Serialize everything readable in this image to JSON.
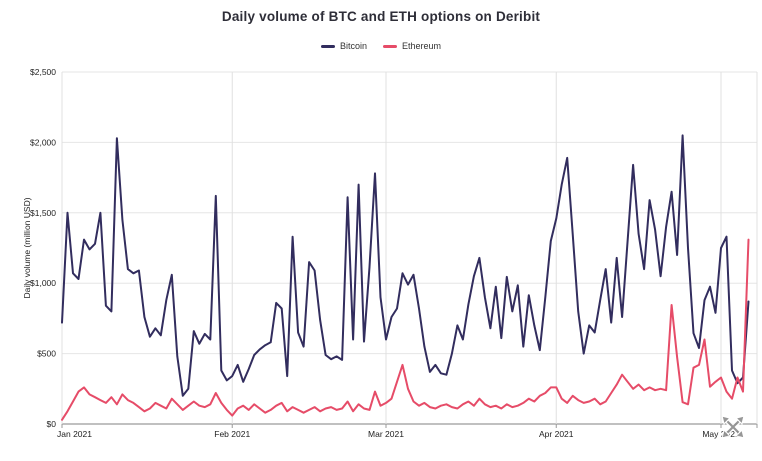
{
  "header": {
    "title": "Daily volume of BTC and ETH options on Deribit"
  },
  "legend": {
    "items": [
      {
        "label": "Bitcoin",
        "color": "#322d5e"
      },
      {
        "label": "Ethereum",
        "color": "#e64c68"
      }
    ]
  },
  "icons": {
    "move_handle": "move-icon",
    "color": "#8f8f8f"
  },
  "colors": {
    "grid": "#e6e6e6",
    "border": "#e0e0e0",
    "axis_line": "#808080",
    "tick": "#999999",
    "tick_label": "#222222",
    "title": "#2e2e38"
  },
  "chart_data": {
    "type": "line",
    "title": "Daily volume of BTC and ETH options on Deribit",
    "xlabel": "",
    "ylabel": "Daily volume (million USD)",
    "ylim": [
      0,
      2500
    ],
    "x_range_days": [
      "Jan 1 2021",
      "May 6 2021"
    ],
    "grid": true,
    "legend_position": "top",
    "y_ticks": [
      {
        "value": 0,
        "label": "$0"
      },
      {
        "value": 500,
        "label": "$500"
      },
      {
        "value": 1000,
        "label": "$1,000"
      },
      {
        "value": 1500,
        "label": "$1,500"
      },
      {
        "value": 2000,
        "label": "$2,000"
      },
      {
        "value": 2500,
        "label": "$2,500"
      }
    ],
    "x_ticks": [
      {
        "day": 1,
        "label": "Jan 2021"
      },
      {
        "day": 32,
        "label": "Feb 2021"
      },
      {
        "day": 60,
        "label": "Mar 2021"
      },
      {
        "day": 91,
        "label": "Apr 2021"
      },
      {
        "day": 121,
        "label": "May 2021"
      }
    ],
    "series": [
      {
        "name": "Bitcoin",
        "color": "#322d5e",
        "values": [
          720,
          1500,
          1070,
          1030,
          1310,
          1240,
          1280,
          1500,
          840,
          800,
          2030,
          1450,
          1100,
          1070,
          1090,
          760,
          620,
          680,
          630,
          880,
          1060,
          480,
          200,
          250,
          660,
          570,
          640,
          600,
          1620,
          380,
          310,
          340,
          420,
          300,
          390,
          490,
          530,
          560,
          580,
          860,
          820,
          340,
          1330,
          650,
          550,
          1150,
          1090,
          740,
          490,
          460,
          480,
          455,
          1610,
          600,
          1700,
          585,
          1115,
          1780,
          900,
          600,
          760,
          820,
          1070,
          990,
          1060,
          820,
          550,
          370,
          420,
          360,
          350,
          500,
          700,
          600,
          850,
          1050,
          1180,
          900,
          680,
          975,
          610,
          1045,
          800,
          985,
          550,
          915,
          700,
          525,
          900,
          1300,
          1460,
          1700,
          1890,
          1350,
          800,
          500,
          700,
          650,
          880,
          1100,
          720,
          1180,
          760,
          1300,
          1840,
          1350,
          1100,
          1590,
          1380,
          1050,
          1400,
          1650,
          1200,
          2050,
          1250,
          645,
          540,
          880,
          975,
          790,
          1250,
          1330,
          380,
          290,
          330,
          870
        ]
      },
      {
        "name": "Ethereum",
        "color": "#e64c68",
        "values": [
          30,
          90,
          160,
          230,
          260,
          210,
          190,
          170,
          150,
          190,
          140,
          210,
          170,
          150,
          120,
          90,
          110,
          150,
          130,
          110,
          180,
          140,
          100,
          130,
          160,
          130,
          120,
          140,
          220,
          150,
          100,
          60,
          110,
          130,
          100,
          140,
          110,
          80,
          100,
          130,
          150,
          90,
          120,
          100,
          80,
          100,
          120,
          90,
          110,
          120,
          100,
          110,
          160,
          90,
          140,
          110,
          100,
          230,
          130,
          150,
          180,
          300,
          420,
          250,
          160,
          130,
          150,
          120,
          110,
          130,
          140,
          120,
          110,
          140,
          160,
          130,
          180,
          140,
          120,
          130,
          110,
          140,
          120,
          130,
          150,
          180,
          160,
          200,
          220,
          260,
          260,
          180,
          150,
          200,
          170,
          150,
          160,
          180,
          140,
          160,
          220,
          280,
          350,
          300,
          250,
          280,
          240,
          260,
          240,
          250,
          240,
          845,
          475,
          155,
          140,
          400,
          420,
          600,
          265,
          300,
          330,
          230,
          180,
          330,
          230,
          1310
        ]
      }
    ]
  }
}
